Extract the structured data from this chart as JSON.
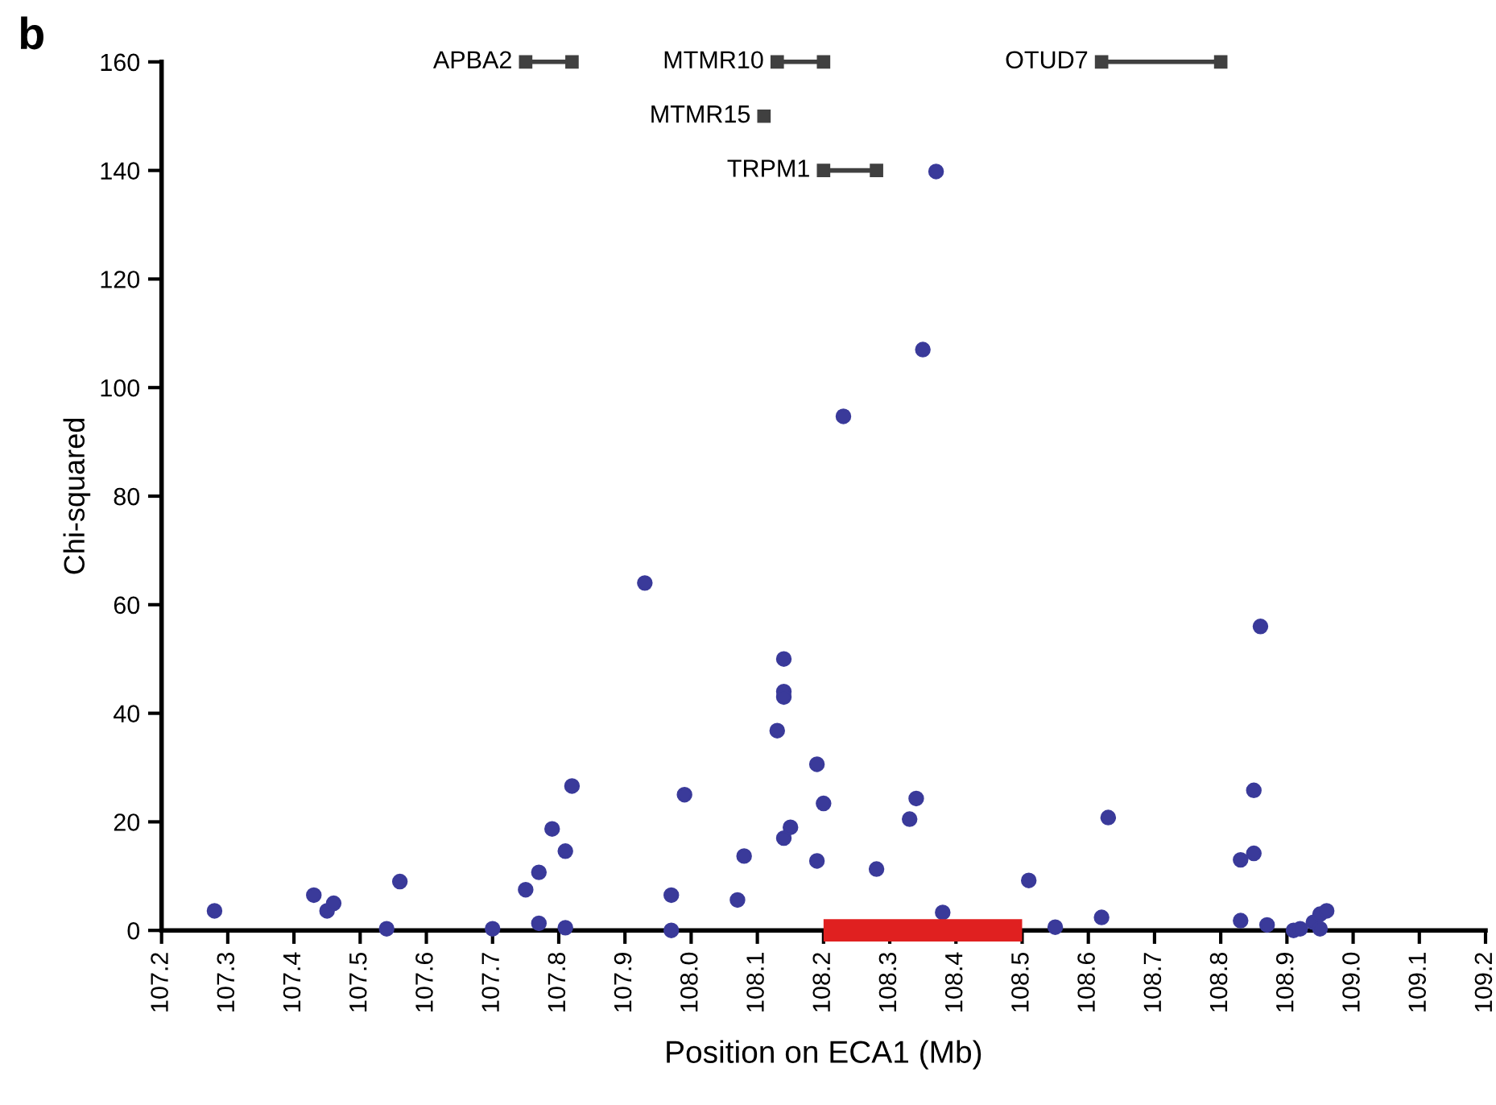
{
  "chart_data": {
    "type": "scatter",
    "xlabel": "Position on ECA1 (Mb)",
    "ylabel": "Chi-squared",
    "annotations": [
      "b"
    ],
    "xlim": [
      107.2,
      109.2
    ],
    "xticks": [
      {
        "value": 107.2,
        "label": "107.2"
      },
      {
        "value": 107.3,
        "label": "107.3"
      },
      {
        "value": 107.4,
        "label": "107.4"
      },
      {
        "value": 107.5,
        "label": "107.5"
      },
      {
        "value": 107.6,
        "label": "107.6"
      },
      {
        "value": 107.7,
        "label": "107.7"
      },
      {
        "value": 107.8,
        "label": "107.8"
      },
      {
        "value": 107.9,
        "label": "107.9"
      },
      {
        "value": 108.0,
        "label": "108.0"
      },
      {
        "value": 108.1,
        "label": "108.1"
      },
      {
        "value": 108.2,
        "label": "108.2"
      },
      {
        "value": 108.3,
        "label": "108.3"
      },
      {
        "value": 108.4,
        "label": "108.4"
      },
      {
        "value": 108.5,
        "label": "108.5"
      },
      {
        "value": 108.6,
        "label": "108.6"
      },
      {
        "value": 108.7,
        "label": "108.7"
      },
      {
        "value": 108.8,
        "label": "108.8"
      },
      {
        "value": 108.9,
        "label": "108.9"
      },
      {
        "value": 109.0,
        "label": "109.0"
      },
      {
        "value": 109.1,
        "label": "109.1"
      },
      {
        "value": 109.2,
        "label": "109.2"
      }
    ],
    "ylim": [
      0,
      160
    ],
    "yticks": [
      0,
      20,
      40,
      60,
      80,
      100,
      120,
      140,
      160
    ],
    "grid": false,
    "legend": false,
    "series": [
      {
        "color": "#3a3a9a",
        "marker": "circle",
        "x": [
          107.28,
          107.43,
          107.45,
          107.46,
          107.54,
          107.56,
          107.7,
          107.75,
          107.77,
          107.77,
          107.79,
          107.81,
          107.81,
          107.82,
          107.93,
          107.97,
          107.97,
          107.99,
          108.07,
          108.08,
          108.14,
          108.14,
          108.14,
          108.13,
          108.14,
          108.15,
          108.19,
          108.19,
          108.2,
          108.23,
          108.28,
          108.33,
          108.34,
          108.35,
          108.37,
          108.38,
          108.51,
          108.55,
          108.62,
          108.63,
          108.83,
          108.83,
          108.85,
          108.85,
          108.86,
          108.87,
          108.91,
          108.92,
          108.94,
          108.95,
          108.96,
          108.95
        ],
        "values": [
          3.6,
          6.5,
          3.6,
          5,
          0.3,
          9,
          0.3,
          7.5,
          10.7,
          1.3,
          18.7,
          14.6,
          0.5,
          26.6,
          64,
          6.5,
          0,
          25,
          5.6,
          13.7,
          50,
          44,
          43,
          36.8,
          17,
          19,
          30.6,
          12.8,
          23.4,
          94.7,
          11.3,
          20.5,
          24.3,
          107,
          139.8,
          3.3,
          9.2,
          0.6,
          2.4,
          20.8,
          1.8,
          13,
          25.8,
          14.2,
          56,
          1,
          0,
          0.3,
          1.5,
          3,
          3.6,
          0.3
        ]
      },
      {
        "type": "line",
        "name": "APBA2",
        "color": "#404040",
        "marker": "square",
        "x": [
          107.75,
          107.82
        ],
        "values": [
          160,
          160
        ]
      },
      {
        "type": "line",
        "name": "MTMR10",
        "color": "#404040",
        "marker": "square",
        "x": [
          108.13,
          108.2
        ],
        "values": [
          160,
          160
        ]
      },
      {
        "type": "line",
        "name": "MTMR15",
        "color": "#404040",
        "marker": "square",
        "x": [
          108.11
        ],
        "values": [
          150
        ]
      },
      {
        "type": "line",
        "name": "TRPM1",
        "color": "#404040",
        "marker": "square",
        "x": [
          108.2,
          108.28
        ],
        "values": [
          140,
          140
        ]
      },
      {
        "type": "line",
        "name": "OTUD7",
        "color": "#404040",
        "marker": "square",
        "x": [
          108.62,
          108.8
        ],
        "values": [
          160,
          160
        ]
      },
      {
        "type": "line",
        "color": "#e02020",
        "marker": "none",
        "x": [
          108.2,
          108.5
        ],
        "values": [
          0,
          0
        ]
      }
    ]
  }
}
